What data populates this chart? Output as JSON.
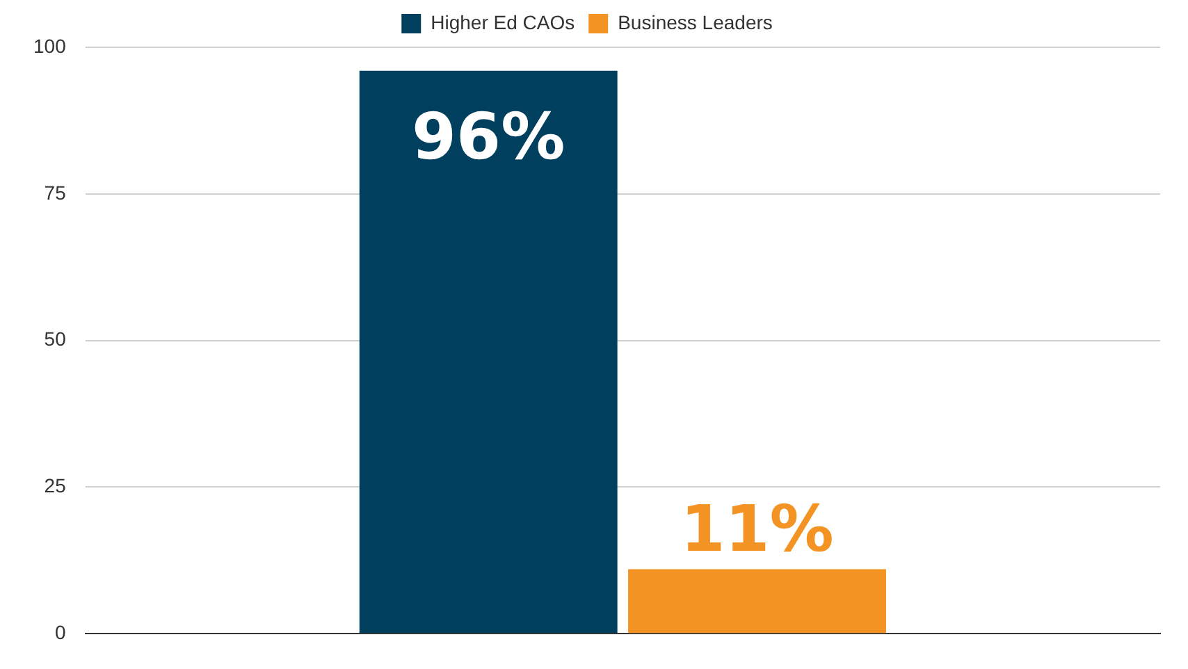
{
  "chart_data": {
    "type": "bar",
    "categories": [
      null
    ],
    "series": [
      {
        "name": "Higher Ed CAOs",
        "color": "#00405e",
        "values": [
          96
        ],
        "value_labels": [
          "96%"
        ]
      },
      {
        "name": "Business Leaders",
        "color": "#f39323",
        "values": [
          11
        ],
        "value_labels": [
          "11%"
        ]
      }
    ],
    "ylim": [
      0,
      100
    ],
    "yticks": [
      0,
      25,
      50,
      75,
      100
    ],
    "grid": "y",
    "legend": "top"
  }
}
